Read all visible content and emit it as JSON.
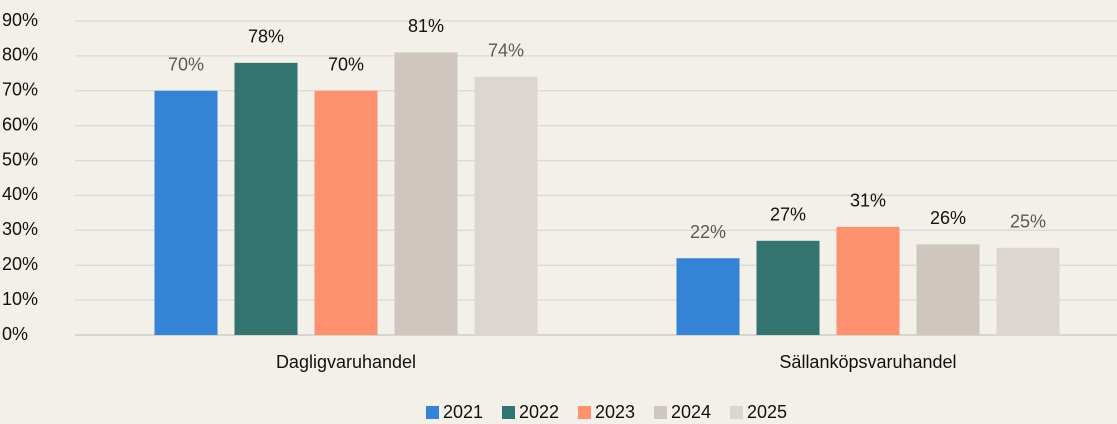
{
  "chart_data": {
    "type": "bar",
    "categories": [
      "Dagligvaruhandel",
      "Sällanköpsvaruhandel"
    ],
    "series": [
      {
        "name": "2021",
        "color": "#3583d6",
        "label_color": "#595959",
        "values": [
          70,
          22
        ],
        "value_labels": [
          "70%",
          "22%"
        ]
      },
      {
        "name": "2022",
        "color": "#337370",
        "label_color": "#111111",
        "values": [
          78,
          27
        ],
        "value_labels": [
          "78%",
          "27%"
        ]
      },
      {
        "name": "2023",
        "color": "#fe916f",
        "label_color": "#111111",
        "values": [
          70,
          31
        ],
        "value_labels": [
          "70%",
          "31%"
        ]
      },
      {
        "name": "2024",
        "color": "#d0c6c0",
        "label_color": "#111111",
        "values": [
          81,
          26
        ],
        "value_labels": [
          "81%",
          "26%"
        ]
      },
      {
        "name": "2025",
        "color": "#ddd5cf",
        "label_color": "#595959",
        "values": [
          74,
          25
        ],
        "value_labels": [
          "74%",
          "25%"
        ]
      }
    ],
    "ylim": [
      0,
      90
    ],
    "yticks": [
      {
        "value": 0,
        "label": "0%"
      },
      {
        "value": 10,
        "label": "10%"
      },
      {
        "value": 20,
        "label": "20%"
      },
      {
        "value": 30,
        "label": "30%"
      },
      {
        "value": 40,
        "label": "40%"
      },
      {
        "value": 50,
        "label": "50%"
      },
      {
        "value": 60,
        "label": "60%"
      },
      {
        "value": 70,
        "label": "70%"
      },
      {
        "value": 80,
        "label": "80%"
      },
      {
        "value": 90,
        "label": "90%"
      }
    ],
    "grid": true,
    "legend": "bottom"
  }
}
